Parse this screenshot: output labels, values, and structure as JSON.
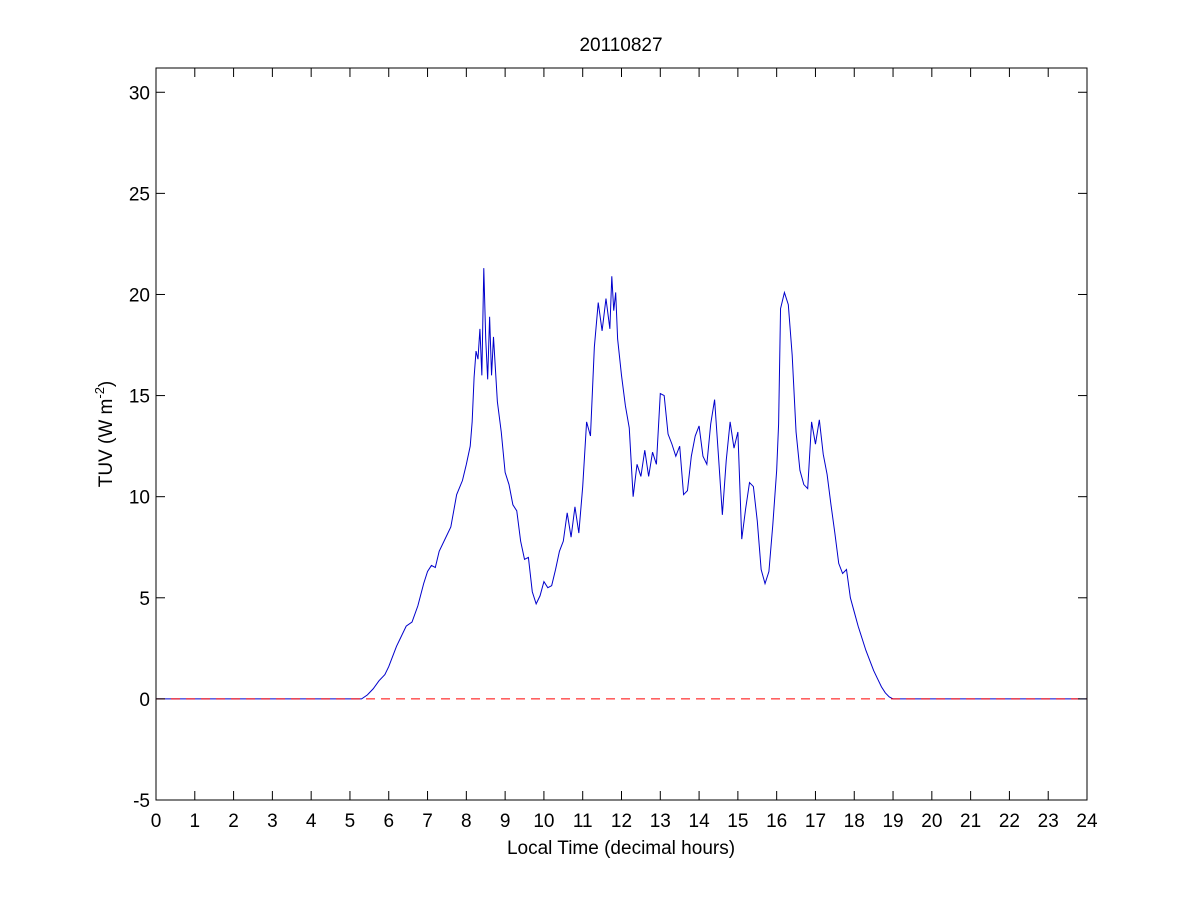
{
  "chart_data": {
    "type": "line",
    "title": "20110827",
    "xlabel": "Local Time (decimal hours)",
    "ylabel": {
      "main": "TUV (W m",
      "superscript": "-2",
      "close": ")"
    },
    "xlim": [
      0,
      24
    ],
    "ylim": [
      -5,
      31.2
    ],
    "xticks": [
      0,
      1,
      2,
      3,
      4,
      5,
      6,
      7,
      8,
      9,
      10,
      11,
      12,
      13,
      14,
      15,
      16,
      17,
      18,
      19,
      20,
      21,
      22,
      23,
      24
    ],
    "yticks": [
      -5,
      0,
      5,
      10,
      15,
      20,
      25,
      30
    ],
    "grid": false,
    "series": [
      {
        "style": "solid",
        "color": "#0000cc",
        "x": [
          0,
          5.3,
          5.45,
          5.6,
          5.75,
          5.9,
          6.0,
          6.1,
          6.2,
          6.3,
          6.45,
          6.6,
          6.75,
          6.9,
          7.0,
          7.1,
          7.2,
          7.3,
          7.45,
          7.6,
          7.75,
          7.9,
          8.0,
          8.1,
          8.15,
          8.2,
          8.25,
          8.3,
          8.35,
          8.4,
          8.45,
          8.5,
          8.55,
          8.6,
          8.65,
          8.7,
          8.8,
          8.9,
          9.0,
          9.1,
          9.2,
          9.3,
          9.4,
          9.5,
          9.6,
          9.7,
          9.8,
          9.9,
          10.0,
          10.1,
          10.2,
          10.3,
          10.4,
          10.5,
          10.6,
          10.7,
          10.8,
          10.9,
          11.0,
          11.1,
          11.2,
          11.3,
          11.4,
          11.5,
          11.6,
          11.7,
          11.75,
          11.8,
          11.85,
          11.9,
          12.0,
          12.1,
          12.2,
          12.3,
          12.4,
          12.5,
          12.6,
          12.7,
          12.8,
          12.9,
          13.0,
          13.1,
          13.2,
          13.3,
          13.4,
          13.5,
          13.6,
          13.7,
          13.8,
          13.9,
          14.0,
          14.1,
          14.2,
          14.3,
          14.4,
          14.5,
          14.6,
          14.7,
          14.8,
          14.9,
          15.0,
          15.1,
          15.2,
          15.3,
          15.4,
          15.5,
          15.6,
          15.7,
          15.8,
          15.9,
          16.0,
          16.05,
          16.1,
          16.2,
          16.3,
          16.4,
          16.5,
          16.6,
          16.7,
          16.8,
          16.9,
          17.0,
          17.1,
          17.2,
          17.3,
          17.4,
          17.5,
          17.6,
          17.7,
          17.8,
          17.9,
          18.0,
          18.1,
          18.2,
          18.3,
          18.4,
          18.5,
          18.6,
          18.7,
          18.8,
          18.9,
          19.0,
          19.1,
          24
        ],
        "y": [
          0,
          0,
          0.2,
          0.5,
          0.9,
          1.2,
          1.6,
          2.1,
          2.6,
          3.0,
          3.6,
          3.8,
          4.6,
          5.7,
          6.3,
          6.6,
          6.5,
          7.3,
          7.9,
          8.5,
          10.1,
          10.8,
          11.6,
          12.5,
          13.7,
          15.9,
          17.2,
          16.8,
          18.3,
          16.0,
          21.3,
          17.8,
          15.8,
          18.9,
          16.0,
          17.9,
          14.7,
          13.2,
          11.2,
          10.6,
          9.6,
          9.3,
          7.8,
          6.9,
          7.0,
          5.3,
          4.7,
          5.1,
          5.8,
          5.5,
          5.6,
          6.4,
          7.3,
          7.8,
          9.2,
          8.0,
          9.5,
          8.2,
          10.5,
          13.7,
          13.0,
          17.4,
          19.6,
          18.2,
          19.8,
          18.3,
          20.9,
          19.2,
          20.1,
          17.8,
          16.0,
          14.5,
          13.4,
          10.0,
          11.6,
          11.0,
          12.3,
          11.0,
          12.2,
          11.6,
          15.1,
          15.0,
          13.1,
          12.6,
          12.0,
          12.5,
          10.1,
          10.3,
          12.0,
          13.0,
          13.5,
          12.0,
          11.6,
          13.6,
          14.8,
          12.0,
          9.1,
          11.8,
          13.7,
          12.4,
          13.2,
          7.9,
          9.4,
          10.7,
          10.5,
          8.8,
          6.4,
          5.7,
          6.3,
          8.6,
          11.3,
          13.6,
          19.3,
          20.1,
          19.5,
          17.0,
          13.2,
          11.3,
          10.6,
          10.4,
          13.7,
          12.6,
          13.8,
          12.1,
          11.1,
          9.6,
          8.2,
          6.7,
          6.2,
          6.4,
          5.0,
          4.3,
          3.6,
          3.0,
          2.4,
          1.9,
          1.4,
          1.0,
          0.6,
          0.3,
          0.1,
          0,
          0,
          0
        ]
      },
      {
        "style": "dashed",
        "color": "#ff0000",
        "x": [
          0,
          24
        ],
        "y": [
          0,
          0
        ]
      }
    ]
  }
}
